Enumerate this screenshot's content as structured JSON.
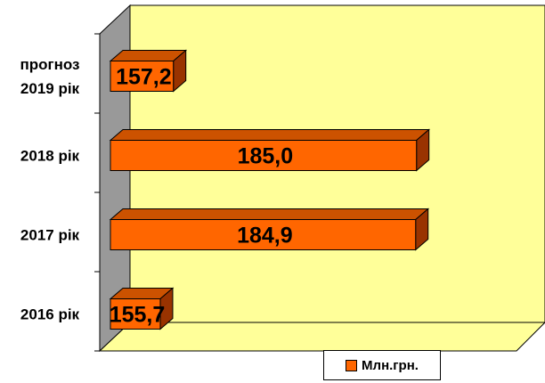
{
  "chart_data": {
    "type": "bar",
    "orientation": "horizontal",
    "style": "3d",
    "categories": [
      "прогноз 2019 рік",
      "2018 рік",
      "2017 рік",
      "2016 рік"
    ],
    "category_lines": [
      [
        "прогноз",
        "2019 рік"
      ],
      [
        "2018 рік"
      ],
      [
        "2017 рік"
      ],
      [
        "2016 рік"
      ]
    ],
    "values": [
      157.2,
      185.0,
      184.9,
      155.7
    ],
    "value_labels": [
      "157,2",
      "185,0",
      "184,9",
      "155,7"
    ],
    "series": [
      {
        "name": "Млн.грн.",
        "values": [
          157.2,
          185.0,
          184.9,
          155.7
        ]
      }
    ],
    "xlim": [
      150,
      190
    ],
    "grid": false,
    "legend_position": "bottom-right",
    "colors": {
      "bar": "#ff6600",
      "bar_side": "#993300",
      "bar_top": "#cc5200",
      "plot_back": "#ffff99",
      "plot_floor": "#ffff99",
      "plot_wall": "#999999"
    }
  },
  "legend": {
    "label": "Млн.грн."
  }
}
